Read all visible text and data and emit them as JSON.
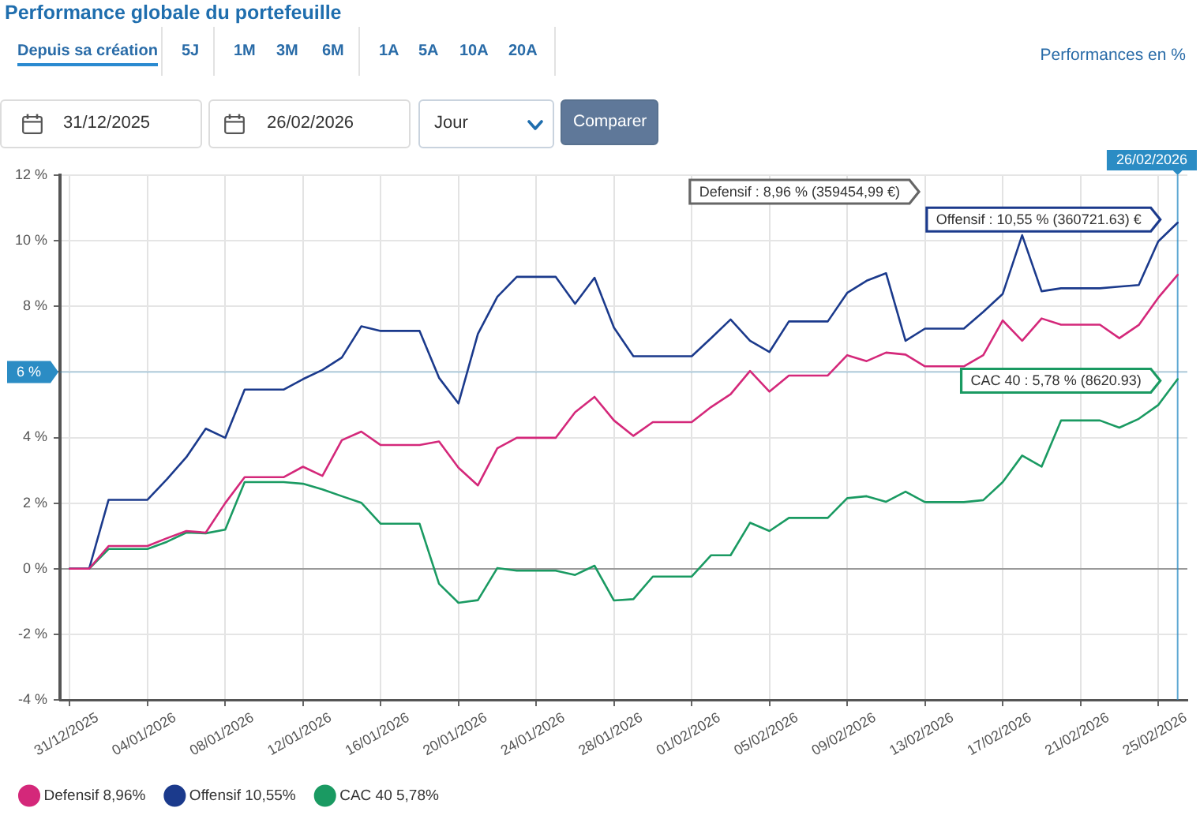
{
  "chart_data": {
    "type": "line",
    "title": "Performance globale du portefeuille",
    "x": [
      "2025-12-31",
      "2026-01-01",
      "2026-01-02",
      "2026-01-03",
      "2026-01-04",
      "2026-01-05",
      "2026-01-06",
      "2026-01-07",
      "2026-01-08",
      "2026-01-09",
      "2026-01-10",
      "2026-01-11",
      "2026-01-12",
      "2026-01-13",
      "2026-01-14",
      "2026-01-15",
      "2026-01-16",
      "2026-01-17",
      "2026-01-18",
      "2026-01-19",
      "2026-01-20",
      "2026-01-21",
      "2026-01-22",
      "2026-01-23",
      "2026-01-24",
      "2026-01-25",
      "2026-01-26",
      "2026-01-27",
      "2026-01-28",
      "2026-01-29",
      "2026-01-30",
      "2026-01-31",
      "2026-02-01",
      "2026-02-02",
      "2026-02-03",
      "2026-02-04",
      "2026-02-05",
      "2026-02-06",
      "2026-02-07",
      "2026-02-08",
      "2026-02-09",
      "2026-02-10",
      "2026-02-11",
      "2026-02-12",
      "2026-02-13",
      "2026-02-14",
      "2026-02-15",
      "2026-02-16",
      "2026-02-17",
      "2026-02-18",
      "2026-02-19",
      "2026-02-20",
      "2026-02-21",
      "2026-02-22",
      "2026-02-23",
      "2026-02-24",
      "2026-02-25",
      "2026-02-26"
    ],
    "series": [
      {
        "name": "Defensif 8,96%",
        "color": "#d4287a",
        "values": [
          0,
          0,
          0.69,
          0.69,
          0.69,
          0.93,
          1.15,
          1.1,
          2.0,
          2.79,
          2.79,
          2.79,
          3.11,
          2.83,
          3.92,
          4.18,
          3.77,
          3.77,
          3.77,
          3.88,
          3.08,
          2.54,
          3.67,
          3.99,
          3.99,
          3.99,
          4.77,
          5.24,
          4.52,
          4.05,
          4.47,
          4.47,
          4.47,
          4.93,
          5.32,
          6.03,
          5.4,
          5.89,
          5.89,
          5.89,
          6.51,
          6.33,
          6.59,
          6.53,
          6.17,
          6.17,
          6.17,
          6.51,
          7.57,
          6.95,
          7.63,
          7.44,
          7.44,
          7.44,
          7.03,
          7.43,
          8.26,
          8.96
        ]
      },
      {
        "name": "Offensif 10,55%",
        "color": "#1b3a8c",
        "values": [
          0,
          0,
          2.1,
          2.1,
          2.1,
          2.73,
          3.4,
          4.27,
          3.99,
          5.46,
          5.46,
          5.46,
          5.78,
          6.06,
          6.44,
          7.39,
          7.25,
          7.25,
          7.25,
          5.82,
          5.04,
          7.16,
          8.29,
          8.9,
          8.9,
          8.9,
          8.08,
          8.87,
          7.35,
          6.48,
          6.48,
          6.48,
          6.48,
          7.03,
          7.6,
          6.95,
          6.61,
          7.54,
          7.54,
          7.54,
          8.41,
          8.78,
          9.01,
          6.95,
          7.32,
          7.32,
          7.32,
          7.83,
          8.38,
          10.17,
          8.46,
          8.55,
          8.55,
          8.55,
          8.6,
          8.65,
          9.98,
          10.55
        ]
      },
      {
        "name": "CAC 40 5,78%",
        "color": "#1a9a62",
        "values": [
          0,
          0,
          0.6,
          0.6,
          0.6,
          0.82,
          1.1,
          1.08,
          1.19,
          2.64,
          2.64,
          2.64,
          2.59,
          2.42,
          2.21,
          2.01,
          1.37,
          1.37,
          1.37,
          -0.46,
          -1.04,
          -0.96,
          0.02,
          -0.06,
          -0.06,
          -0.06,
          -0.19,
          0.09,
          -0.97,
          -0.93,
          -0.24,
          -0.24,
          -0.24,
          0.41,
          0.41,
          1.4,
          1.15,
          1.55,
          1.55,
          1.55,
          2.15,
          2.21,
          2.04,
          2.35,
          2.03,
          2.03,
          2.03,
          2.09,
          2.64,
          3.45,
          3.11,
          4.52,
          4.52,
          4.52,
          4.3,
          4.57,
          4.99,
          5.78
        ]
      }
    ],
    "xlim": [
      "2025-12-30T12:00",
      "2026-02-26T12:00"
    ],
    "xticks": [
      {
        "value": "2025-12-31",
        "label": "31/12/2025"
      },
      {
        "value": "2026-01-04",
        "label": "04/01/2026"
      },
      {
        "value": "2026-01-08",
        "label": "08/01/2026"
      },
      {
        "value": "2026-01-12",
        "label": "12/01/2026"
      },
      {
        "value": "2026-01-16",
        "label": "16/01/2026"
      },
      {
        "value": "2026-01-20",
        "label": "20/01/2026"
      },
      {
        "value": "2026-01-24",
        "label": "24/01/2026"
      },
      {
        "value": "2026-01-28",
        "label": "28/01/2026"
      },
      {
        "value": "2026-02-01",
        "label": "01/02/2026"
      },
      {
        "value": "2026-02-05",
        "label": "05/02/2026"
      },
      {
        "value": "2026-02-09",
        "label": "09/02/2026"
      },
      {
        "value": "2026-02-13",
        "label": "13/02/2026"
      },
      {
        "value": "2026-02-17",
        "label": "17/02/2026"
      },
      {
        "value": "2026-02-21",
        "label": "21/02/2026"
      },
      {
        "value": "2026-02-25",
        "label": "25/02/2026"
      }
    ],
    "ylim": [
      -4,
      12
    ],
    "yticks": [
      {
        "value": -4,
        "label": "-4 %"
      },
      {
        "value": -2,
        "label": "-2 %"
      },
      {
        "value": 0,
        "label": "0 %"
      },
      {
        "value": 2,
        "label": "2 %"
      },
      {
        "value": 4,
        "label": "4 %"
      },
      {
        "value": 6,
        "label": null
      },
      {
        "value": 8,
        "label": "8 %"
      },
      {
        "value": 10,
        "label": "10 %"
      },
      {
        "value": 12,
        "label": "12 %"
      }
    ],
    "grid": true,
    "legend": "bottom left",
    "marker": "none",
    "line_style": "solid",
    "ref_lines": [
      {
        "axis": "x",
        "value": "2026-02-26",
        "label": "26/02/2026",
        "color": "#2b8cc4"
      },
      {
        "axis": "y",
        "value": 6,
        "label": "6 %",
        "color": "#2b8cc4"
      }
    ],
    "annotations": [
      "Depuis sa création",
      "5J",
      "1M",
      "3M",
      "6M",
      "1A",
      "5A",
      "10A",
      "20A",
      "Performances en %",
      "31/12/2025",
      "26/02/2026",
      "Jour",
      "Comparer",
      "Defensif : 8,96 % (359454,99 €)",
      {
        "text": "Offensif : 10,55 % (360721.63) €",
        "x": "2026-02-26",
        "y": 10.55
      },
      {
        "text": "CAC 40 : 5,78 % (8620.93)",
        "x": "2026-02-26",
        "y": 5.78
      }
    ]
  }
}
